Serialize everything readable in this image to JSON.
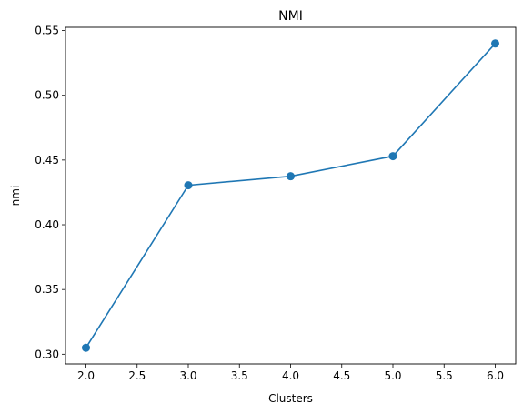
{
  "chart_data": {
    "type": "line",
    "title": "NMI",
    "xlabel": "Clusters",
    "ylabel": "nmi",
    "x": [
      2,
      3,
      4,
      5,
      6
    ],
    "series": [
      {
        "values": [
          0.305,
          0.4305,
          0.4375,
          0.453,
          0.54
        ],
        "color": "#1f77b4",
        "marker": "circle"
      }
    ],
    "xlim": [
      1.8,
      6.2
    ],
    "ylim": [
      0.2925,
      0.5525
    ],
    "xticks": [
      "2.0",
      "2.5",
      "3.0",
      "3.5",
      "4.0",
      "4.5",
      "5.0",
      "5.5",
      "6.0"
    ],
    "yticks": [
      "0.30",
      "0.35",
      "0.40",
      "0.45",
      "0.50",
      "0.55"
    ],
    "grid": false,
    "legend": "none"
  }
}
